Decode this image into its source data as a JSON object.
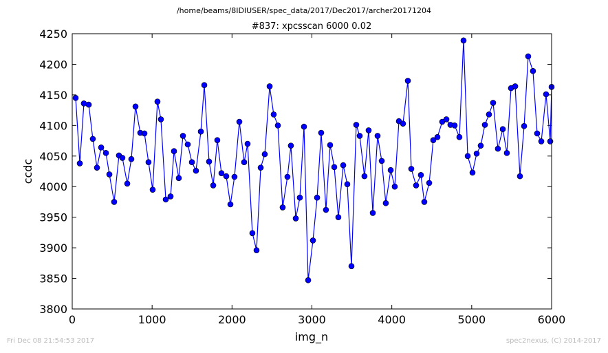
{
  "chart_data": {
    "type": "line",
    "suptitle": "/home/beams/8IDIUSER/spec_data/2017/Dec2017/archer20171204",
    "title": "#837: xpcsscan 6000 0.02",
    "x_label": "img_n",
    "y_label": "ccdc",
    "footer_left": "Fri Dec 08 21:54:53 2017",
    "footer_right": "spec2nexus, (C) 2014-2017",
    "xlim": [
      0,
      6000
    ],
    "xticks": [
      0,
      1000,
      2000,
      3000,
      4000,
      5000,
      6000
    ],
    "ylim": [
      3800,
      4250
    ],
    "yticks": [
      3800,
      3850,
      3900,
      3950,
      4000,
      4050,
      4100,
      4150,
      4200,
      4250
    ],
    "grid": false,
    "series": [
      {
        "name": "ccdc",
        "color": "#0000ff",
        "x": [
          43,
          95,
          146,
          207,
          258,
          310,
          362,
          422,
          465,
          525,
          585,
          628,
          689,
          740,
          792,
          852,
          904,
          955,
          1007,
          1067,
          1110,
          1171,
          1231,
          1274,
          1334,
          1386,
          1446,
          1498,
          1549,
          1610,
          1653,
          1713,
          1765,
          1816,
          1868,
          1928,
          1980,
          2031,
          2092,
          2152,
          2195,
          2255,
          2307,
          2359,
          2410,
          2471,
          2522,
          2574,
          2634,
          2694,
          2737,
          2798,
          2849,
          2901,
          2953,
          3013,
          3065,
          3116,
          3176,
          3228,
          3280,
          3331,
          3392,
          3443,
          3495,
          3555,
          3598,
          3658,
          3710,
          3762,
          3822,
          3874,
          3925,
          3986,
          4037,
          4089,
          4140,
          4201,
          4244,
          4304,
          4364,
          4407,
          4468,
          4519,
          4571,
          4631,
          4683,
          4734,
          4786,
          4846,
          4898,
          4950,
          5010,
          5062,
          5113,
          5165,
          5216,
          5268,
          5328,
          5389,
          5440,
          5492,
          5544,
          5604,
          5656,
          5707,
          5767,
          5819,
          5871,
          5931,
          5983,
          6000
        ],
        "values": [
          4145,
          4038,
          4136,
          4134,
          4078,
          4031,
          4064,
          4055,
          4020,
          3975,
          4051,
          4047,
          4005,
          4045,
          4131,
          4088,
          4087,
          4040,
          3995,
          4139,
          4110,
          3979,
          3984,
          4058,
          4014,
          4083,
          4069,
          4040,
          4026,
          4090,
          4166,
          4041,
          4002,
          4076,
          4022,
          4017,
          3971,
          4016,
          4106,
          4040,
          4070,
          3924,
          3896,
          4031,
          4053,
          4164,
          4118,
          4100,
          3966,
          4016,
          4067,
          3948,
          3982,
          4098,
          3847,
          3912,
          3982,
          4088,
          3962,
          4068,
          4032,
          3950,
          4035,
          4004,
          3870,
          4101,
          4083,
          4017,
          4092,
          3957,
          4083,
          4042,
          3973,
          4027,
          4000,
          4107,
          4103,
          4173,
          4029,
          4002,
          4019,
          3975,
          4006,
          4076,
          4081,
          4106,
          4110,
          4101,
          4100,
          4081,
          4239,
          4050,
          4023,
          4054,
          4067,
          4101,
          4118,
          4137,
          4062,
          4094,
          4055,
          4161,
          4164,
          4017,
          4099,
          4213,
          4189,
          4087,
          4074,
          4151,
          4074,
          4163
        ]
      }
    ]
  }
}
